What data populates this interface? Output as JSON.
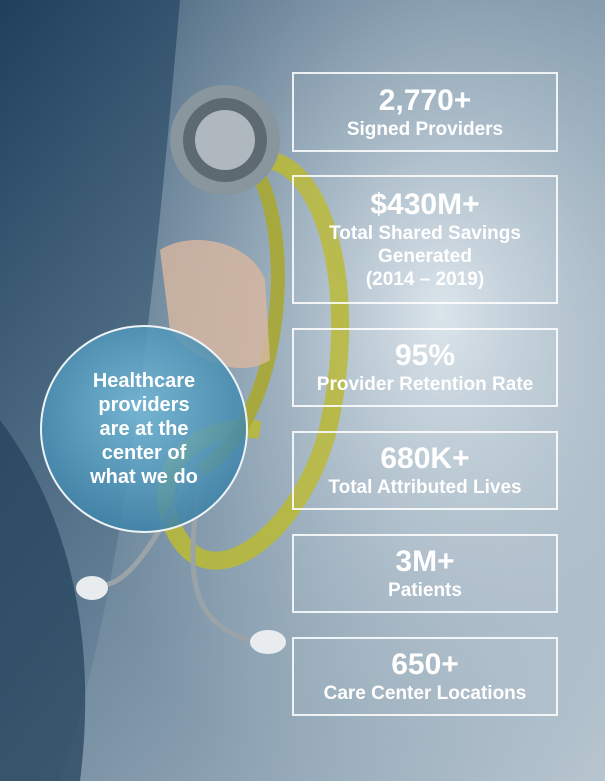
{
  "circle": {
    "lines": [
      "Healthcare",
      "providers",
      "are at the",
      "center of",
      "what we do"
    ]
  },
  "stats": [
    {
      "value": "2,770+",
      "label": [
        "Signed Providers"
      ]
    },
    {
      "value": "$430M+",
      "label": [
        "Total Shared Savings",
        "Generated",
        "(2014 – 2019)"
      ]
    },
    {
      "value": "95%",
      "label": [
        "Provider Retention Rate"
      ]
    },
    {
      "value": "680K+",
      "label": [
        "Total Attributed Lives"
      ]
    },
    {
      "value": "3M+",
      "label": [
        "Patients"
      ]
    },
    {
      "value": "650+",
      "label": [
        "Care Center Locations"
      ]
    }
  ]
}
